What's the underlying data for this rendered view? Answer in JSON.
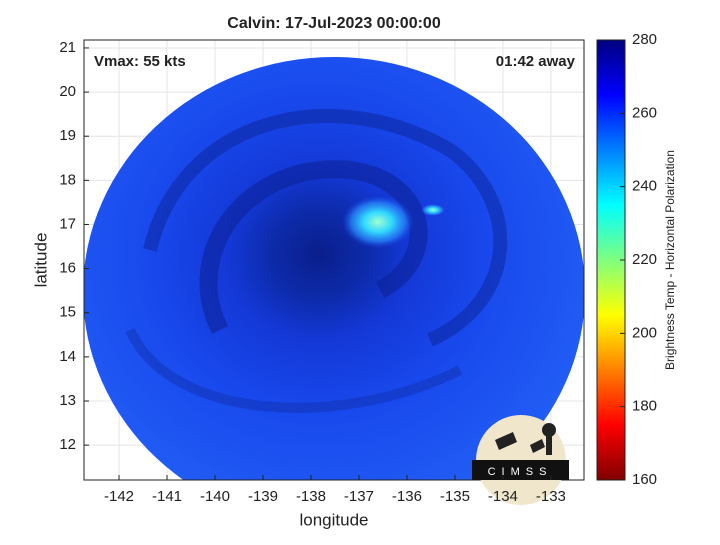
{
  "chart_data": {
    "type": "map",
    "title": "Calvin: 17-Jul-2023 00:00:00",
    "x_label": "longitude",
    "y_label": "latitude",
    "annotations": [
      "Vmax: 55 kts",
      "01:42 away"
    ],
    "xlim": [
      -142.73,
      -132.31
    ],
    "ylim": [
      11.21,
      21.18
    ],
    "xticks": [
      -142,
      -141,
      -140,
      -139,
      -138,
      -137,
      -136,
      -135,
      -134,
      -133
    ],
    "yticks": [
      12,
      13,
      14,
      15,
      16,
      17,
      18,
      19,
      20,
      21
    ],
    "grid": true,
    "colorbar": {
      "label": "Brightness Temp - Horizontal Polarization",
      "lim": [
        160,
        280
      ],
      "ticks": [
        160,
        180,
        200,
        220,
        240,
        260,
        280
      ]
    }
  },
  "logo": "CIMSS"
}
